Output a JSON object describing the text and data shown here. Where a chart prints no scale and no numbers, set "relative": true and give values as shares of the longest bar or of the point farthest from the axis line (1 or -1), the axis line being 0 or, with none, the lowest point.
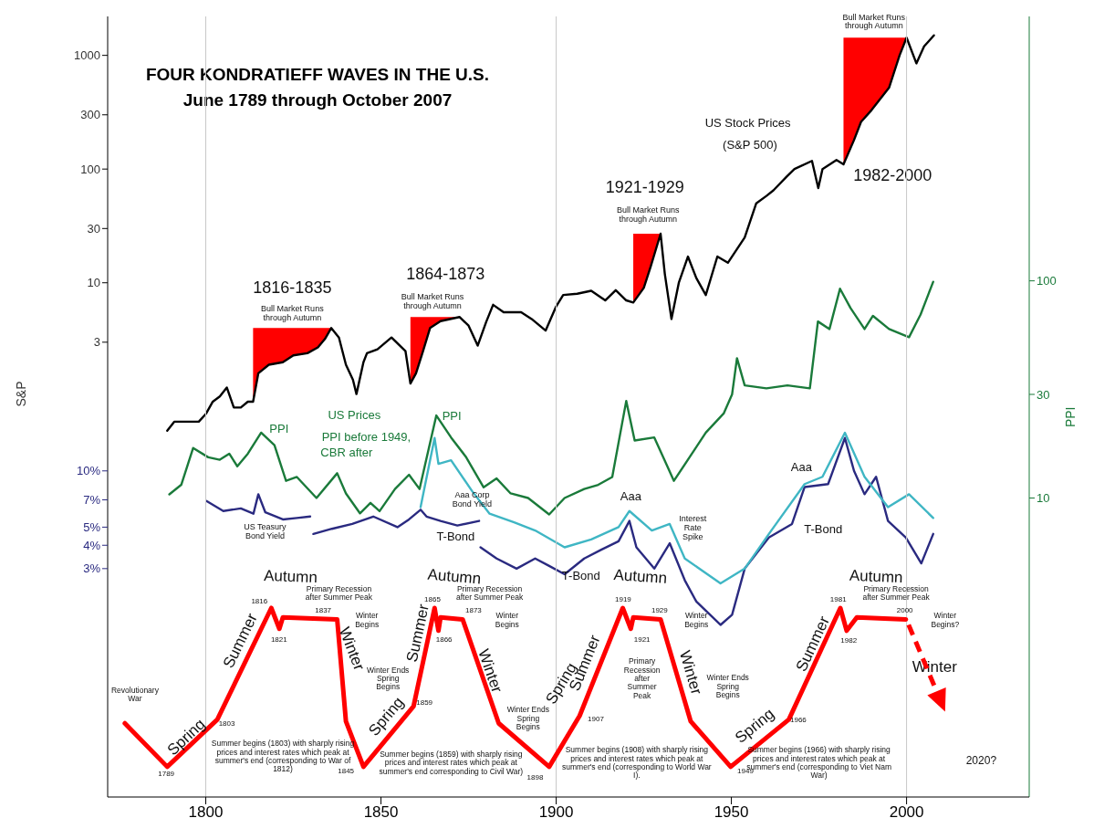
{
  "chart_data": [
    {
      "type": "line",
      "title": "FOUR KONDRATIEFF WAVES IN THE U.S.",
      "subtitle": "June 1789 through October 2007",
      "ylabel": "S&P",
      "xlim": [
        1772,
        2035
      ],
      "ylim": [
        0.0003,
        2200
      ],
      "yticks": [
        3,
        10,
        30,
        100,
        300,
        1000
      ],
      "log": true,
      "tick_labels": "y",
      "line_style": "solid",
      "marker": "none",
      "series": [
        {
          "color": "#000000",
          "lower": [
            null,
            null,
            null,
            null,
            null,
            null,
            null,
            null,
            null,
            null,
            null,
            null,
            0.9,
            1.6,
            1.9,
            2.0,
            2.3,
            2.4,
            2.7,
            3.2,
            4.0,
            null,
            null,
            null,
            null,
            null,
            null,
            null,
            null,
            null,
            1.3,
            1.6,
            2.5,
            4.0,
            4.6,
            5.0,
            null,
            null,
            null,
            null,
            null,
            null,
            null,
            null,
            null,
            null,
            null,
            null,
            null,
            null,
            null,
            6.7,
            9,
            14,
            27,
            null,
            null,
            null,
            null,
            null,
            null,
            null,
            null,
            null,
            null,
            null,
            null,
            null,
            null,
            null,
            null,
            null,
            null,
            110,
            180,
            260,
            330,
            520,
            1000,
            1430,
            null,
            null,
            null
          ],
          "upper": [
            null,
            null,
            null,
            null,
            null,
            null,
            null,
            null,
            null,
            null,
            null,
            null,
            4,
            4,
            4,
            4,
            4,
            4,
            4,
            4,
            4,
            null,
            null,
            null,
            null,
            null,
            null,
            null,
            null,
            null,
            5,
            5,
            5,
            5,
            5,
            5,
            null,
            null,
            null,
            null,
            null,
            null,
            null,
            null,
            null,
            null,
            null,
            null,
            null,
            null,
            null,
            27,
            27,
            27,
            27,
            null,
            null,
            null,
            null,
            null,
            null,
            null,
            null,
            null,
            null,
            null,
            null,
            null,
            null,
            null,
            null,
            null,
            null,
            1430,
            1430,
            1430,
            1430,
            1430,
            1430,
            1430,
            null,
            null,
            null
          ],
          "x": [
            1789,
            1791,
            1793,
            1796,
            1798,
            1800,
            1802,
            1804,
            1806,
            1808,
            1810,
            1812,
            1813.5,
            1815,
            1818,
            1822,
            1825,
            1829,
            1832,
            1834,
            1835.8,
            1838,
            1840,
            1842,
            1843,
            1845,
            1846,
            1849,
            1853,
            1857,
            1858.4,
            1860,
            1862,
            1864,
            1867,
            1872.4,
            1875,
            1877.6,
            1880,
            1882,
            1885,
            1890,
            1893,
            1897,
            1900,
            1902,
            1906,
            1910,
            1914,
            1917,
            1920,
            1922,
            1925,
            1927,
            1929.8,
            1931,
            1932.9,
            1935,
            1937.6,
            1940,
            1942.7,
            1946,
            1949,
            1953.8,
            1957.1,
            1960,
            1962,
            1965.8,
            1968,
            1973,
            1974.8,
            1976,
            1980,
            1982,
            1985,
            1987,
            1990,
            1995,
            1998,
            2000,
            2002.8,
            2005,
            2007.8
          ],
          "values": [
            0.5,
            0.6,
            0.6,
            0.6,
            0.6,
            0.7,
            0.9,
            1.0,
            1.2,
            0.8,
            0.8,
            0.9,
            0.9,
            1.6,
            1.9,
            2.0,
            2.3,
            2.4,
            2.7,
            3.2,
            4.0,
            3.3,
            1.9,
            1.4,
            1.05,
            2.0,
            2.4,
            2.6,
            3.3,
            2.5,
            1.3,
            1.6,
            2.5,
            4.0,
            4.6,
            5.0,
            4.2,
            2.8,
            4.5,
            6.4,
            5.5,
            5.5,
            4.8,
            3.8,
            6.2,
            7.8,
            8.0,
            8.5,
            7.0,
            8.6,
            7.0,
            6.7,
            9,
            14,
            27,
            12,
            4.8,
            10,
            17,
            11,
            7.8,
            17,
            15,
            25,
            50,
            58,
            65,
            86,
            100,
            118,
            68,
            100,
            120,
            110,
            180,
            260,
            330,
            520,
            1000,
            1430,
            850,
            1200,
            1500
          ]
        }
      ],
      "annotations": [
        "1816-1835",
        "Bull Market Runs through Autumn",
        "1864-1873",
        "Bull Market Runs through Autumn",
        "1921-1929",
        "Bull Market Runs through Autumn",
        "1982-2000",
        "Bull Market Runs through Autumn",
        "US Stock Prices",
        "(S&P 500)"
      ]
    },
    {
      "type": "line",
      "y2label": "PPI",
      "xlim": [
        1772,
        2035
      ],
      "y2lim": [
        0.42,
        1650
      ],
      "y2ticks": [
        10,
        30,
        100
      ],
      "log": "y2",
      "tick_labels": "y",
      "marker": "none",
      "series": [
        {
          "color": "#1a7a3a",
          "axis": "y2",
          "x": [
            1789.6,
            1793,
            1796.4,
            1800.7,
            1804,
            1806.7,
            1809,
            1812,
            1815.8,
            1819.6,
            1822.9,
            1826,
            1831.6,
            1837.5,
            1840,
            1844,
            1847,
            1849.6,
            1854,
            1858,
            1861,
            1865.8,
            1870,
            1874.2,
            1879.3,
            1883,
            1887,
            1892,
            1898,
            1902.4,
            1908,
            1912,
            1916,
            1920,
            1922.4,
            1928,
            1933.6,
            1938.4,
            1942.7,
            1947.8,
            1950.2,
            1951.6,
            1953.8,
            1960,
            1966,
            1972.4,
            1974.7,
            1978,
            1981,
            1984,
            1988,
            1990.4,
            1995,
            2000.7,
            2004,
            2007.6
          ],
          "values": [
            10.4,
            11.5,
            17,
            15.4,
            15,
            16,
            14,
            16,
            20,
            17.5,
            12,
            12.5,
            10,
            13,
            10.5,
            8.5,
            9.5,
            8.7,
            11,
            12.8,
            11,
            24,
            19,
            15.5,
            11.2,
            12.3,
            10.5,
            10,
            8.4,
            10,
            11,
            11.5,
            12.5,
            28,
            18.4,
            19,
            12,
            15.7,
            20,
            24.5,
            30,
            44,
            33,
            32,
            33,
            32,
            65,
            60,
            92,
            75,
            60,
            69,
            60,
            55,
            70,
            99
          ]
        }
      ],
      "annotations": [
        "US Prices",
        "PPI before 1949,",
        "CBR after",
        "PPI",
        "PPI"
      ]
    },
    {
      "type": "line",
      "xlim": [
        1772,
        2035
      ],
      "ylim": [
        0.18,
        2700
      ],
      "yticks": [
        {
          "value": 3,
          "label": "3%"
        },
        {
          "value": 4,
          "label": "4%"
        },
        {
          "value": 5,
          "label": "5%"
        },
        {
          "value": 7,
          "label": "7%"
        },
        {
          "value": 10,
          "label": "10%"
        }
      ],
      "log": true,
      "tick_labels": "y",
      "marker": "none",
      "series": [
        {
          "color": "#2a2a80",
          "x": [
            1800.2,
            1805,
            1810,
            1813.6,
            1815,
            1817,
            1822,
            1826,
            1829.8,
            1830.2,
            1830.7,
            1836,
            1841.8,
            1847.8,
            1854.7,
            1858,
            1861.3,
            1863,
            1867,
            1871.8,
            1878,
            1878.2,
            1878.4,
            1883,
            1888.7,
            1894,
            1898,
            1902.4,
            1908,
            1913,
            1917.8,
            1920.9,
            1922.9,
            1928,
            1932.4,
            1936.7,
            1940,
            1946.9,
            1950.2,
            1953.8,
            1960.7,
            1967.3,
            1970.9,
            1977.6,
            1982.4,
            1985,
            1988,
            1991.3,
            1994.7,
            1999.8,
            2004.2,
            2007.6
          ],
          "values": [
            6.9,
            6.1,
            6.3,
            5.9,
            7.5,
            6.0,
            5.5,
            5.6,
            5.7,
            null,
            4.6,
            4.9,
            5.2,
            5.7,
            5.0,
            5.5,
            6.2,
            5.7,
            5.4,
            5.1,
            5.4,
            null,
            3.9,
            3.4,
            3.0,
            3.4,
            3.1,
            2.8,
            3.4,
            3.8,
            4.2,
            5.4,
            3.9,
            3.0,
            4.1,
            2.6,
            2.0,
            1.5,
            1.7,
            3.0,
            4.4,
            5.2,
            8.2,
            8.5,
            15,
            10,
            7.5,
            9.3,
            5.4,
            4.4,
            3.2,
            4.6
          ]
        },
        {
          "color": "#3fb6c4",
          "x": [
            1861.3,
            1865.3,
            1866.4,
            1870,
            1876,
            1881,
            1888,
            1894,
            1902.4,
            1910,
            1917.8,
            1920.9,
            1927.3,
            1932.4,
            1936.7,
            1946.9,
            1953.8,
            1960.7,
            1970.9,
            1976,
            1982.4,
            1988,
            1994.7,
            2000.7,
            2007.6
          ],
          "values": [
            6.4,
            15,
            10.9,
            11.4,
            7.8,
            5.9,
            5.3,
            4.8,
            3.9,
            4.3,
            5.0,
            6.1,
            4.8,
            5.2,
            3.4,
            2.5,
            3.0,
            4.6,
            8.5,
            9.3,
            16,
            9.3,
            6.4,
            7.5,
            5.6
          ]
        }
      ],
      "annotations": [
        "US Teasury Bond Yield",
        "Aaa Corp Bond Yield",
        "T-Bond",
        "T-Bond",
        "Aaa",
        "Interest Rate Spike",
        "T-Bond",
        "Aaa"
      ]
    },
    {
      "type": "line",
      "xlim": [
        1772,
        2035
      ],
      "xticks": [
        1800,
        1850,
        1900,
        1950,
        2000
      ],
      "relative": true,
      "tick_labels": "x",
      "marker": "none",
      "ref_lines": [
        {
          "axis": "x",
          "value": 1800,
          "color": "#c8c8c8"
        },
        {
          "axis": "x",
          "value": 1900,
          "color": "#c8c8c8"
        },
        {
          "axis": "x",
          "value": 2000,
          "color": "#c8c8c8"
        }
      ],
      "series": [
        {
          "color": "#ff0000",
          "line_style": "solid",
          "x": [
            1776.9,
            1789,
            1803.3,
            1818.7,
            1821,
            1822,
            1837.5,
            1840,
            1845,
            1859.3,
            1865.3,
            1866.4,
            1867,
            1873.3,
            1883.6,
            1898,
            1906.7,
            1919,
            1921.3,
            1922,
            1929.8,
            1938.4,
            1949.8,
            1966.4,
            1981.1,
            1982.9,
            1985.8,
            1999.8
          ],
          "values": [
            0.39,
            0.16,
            0.41,
            1,
            0.89,
            0.95,
            0.94,
            0.4,
            0.16,
            0.48,
            1,
            0.88,
            0.95,
            0.94,
            0.39,
            0.16,
            0.43,
            1,
            0.89,
            0.95,
            0.94,
            0.4,
            0.16,
            0.41,
            1,
            0.88,
            0.95,
            0.94
          ]
        }
      ],
      "annotations": [
        "Autumn",
        "Autumn",
        "Autumn",
        "Autumn",
        "Spring",
        "Summer",
        "Winter",
        "Spring",
        "Summer",
        "Winter",
        "Spring",
        "Summer",
        "Winter",
        "Spring",
        "Summer",
        "Winter",
        "Revolutionary War",
        "1789",
        "1803",
        "Summer begins (1803) with sharply rising prices and interest rates which peak at summer's end (corresponding to War of 1812)",
        "1816",
        "1821",
        "Primary Recession after Summer Peak",
        "1837",
        "Winter Begins",
        "Winter Ends Spring Begins",
        "1845",
        "1859",
        "Summer begins (1859) with sharply rising prices and interest rates which peak at summer's end corresponding to Civil War)",
        "1865",
        "1866",
        "Primary Recession after Summer Peak",
        "1873",
        "Winter Begins",
        "Winter Ends Spring Begins",
        "1898",
        "1907",
        "Summer begins (1908) with sharply rising prices and interest rates which peak at summer's end (corresponding to World War I).",
        "1919",
        "1921",
        "Primary Recession after Summer Peak",
        "1929",
        "Winter Begins",
        "Winter Ends Spring Begins",
        "1949",
        "1966",
        "Summer begins (1966) with sharply rising prices and interest rates which peak at summer's end (corresponding to Viet Nam War)",
        "1981",
        "1982",
        "Primary Recession after Summer Peak",
        "2000",
        "Winter Begins?",
        "2020?"
      ]
    }
  ]
}
